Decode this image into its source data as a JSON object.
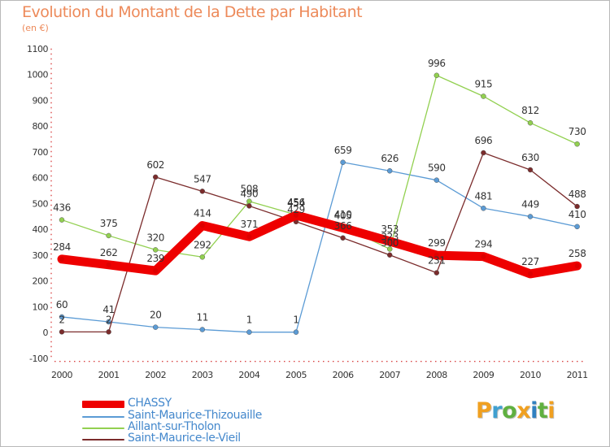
{
  "title": "Evolution du Montant de la Dette par Habitant",
  "unit": "(en €)",
  "logo_text": "Proxiti",
  "logo_colors": [
    "#f0a020",
    "#40a0d0",
    "#60b040",
    "#f0a020",
    "#3080c0",
    "#60b040",
    "#f0a020"
  ],
  "chart_data": {
    "type": "line",
    "title": "Evolution du Montant de la Dette par Habitant",
    "ylabel": "(en €)",
    "xlabel": "",
    "x": [
      "2000",
      "2001",
      "2002",
      "2003",
      "2004",
      "2005",
      "2006",
      "2007",
      "2008",
      "2009",
      "2010",
      "2011"
    ],
    "ylim": [
      -100,
      1100
    ],
    "yticks": [
      -100,
      0,
      100,
      200,
      300,
      400,
      500,
      600,
      700,
      800,
      900,
      1000,
      1100
    ],
    "grid": false,
    "legend_position": "bottom-left",
    "series": [
      {
        "name": "CHASSY",
        "color": "#ee0000",
        "values": [
          284,
          262,
          239,
          414,
          371,
          454,
          405,
          353,
          299,
          294,
          227,
          258
        ]
      },
      {
        "name": "Saint-Maurice-Thizouaille",
        "color": "#5b9bd5",
        "values": [
          60,
          41,
          20,
          11,
          1,
          1,
          659,
          626,
          590,
          481,
          449,
          410
        ]
      },
      {
        "name": "Aillant-sur-Tholon",
        "color": "#92d050",
        "values": [
          436,
          375,
          320,
          292,
          508,
          456,
          410,
          323,
          996,
          915,
          812,
          730
        ]
      },
      {
        "name": "Saint-Maurice-le-Vieil",
        "color": "#7b2c2c",
        "values": [
          2,
          2,
          602,
          547,
          490,
          429,
          366,
          300,
          231,
          696,
          630,
          488
        ]
      }
    ]
  }
}
